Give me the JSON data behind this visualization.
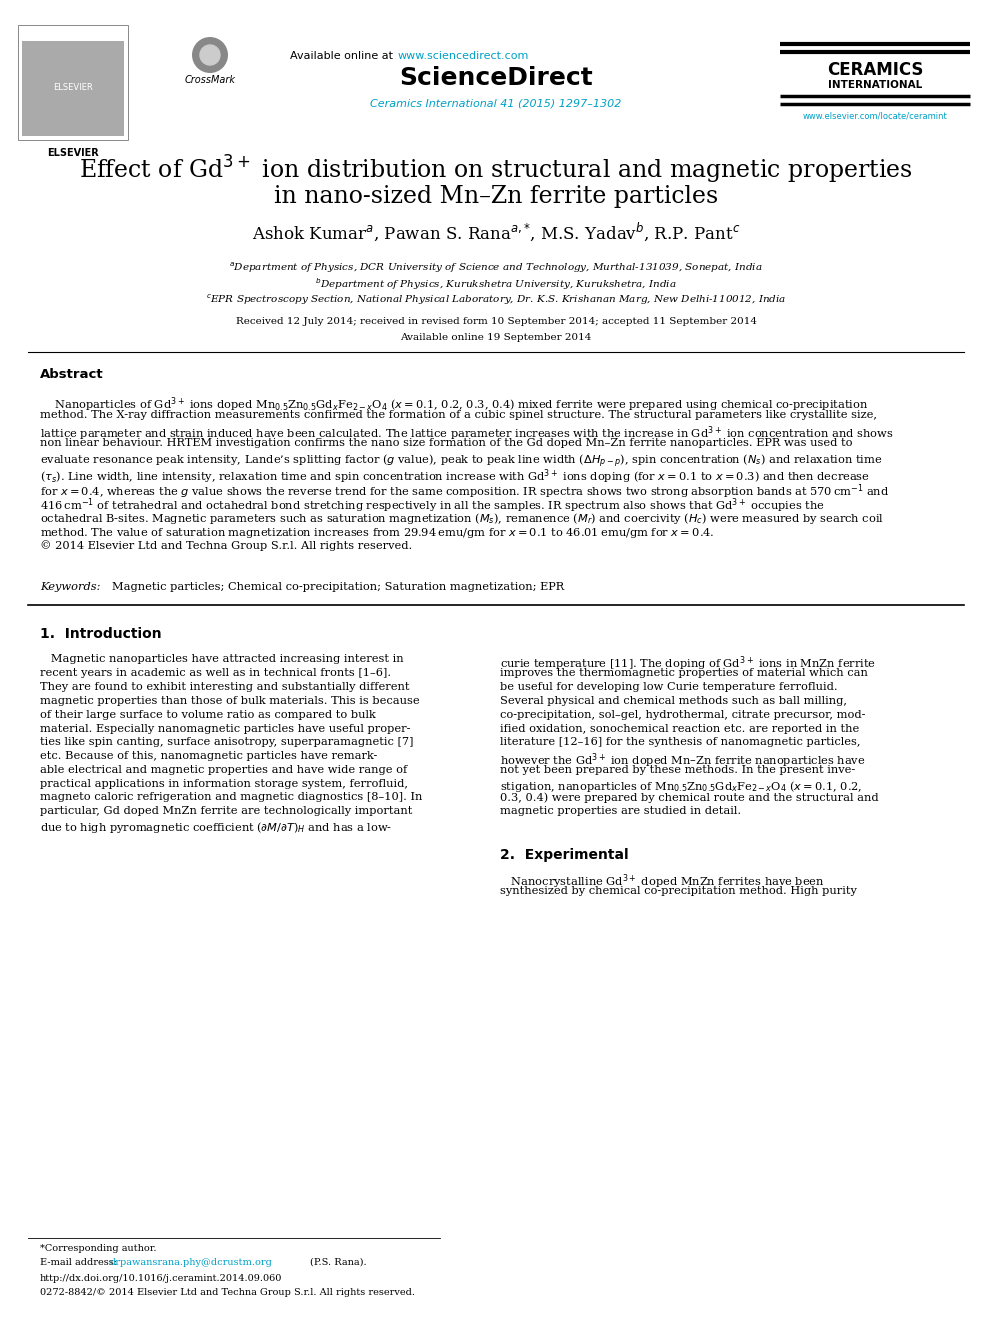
{
  "bg_color": "#ffffff",
  "dpi": 100,
  "fig_w": 9.92,
  "fig_h": 13.23,
  "url_color": "#00a0c6",
  "text_color": "#000000",
  "header": {
    "avail_text": "Available online at ",
    "avail_url": "www.sciencedirect.com",
    "sciencedirect": "ScienceDirect",
    "citation": "Ceramics International 41 (2015) 1297–1302",
    "elsevier": "ELSEVIER",
    "crossmark": "CrossMark",
    "ceramics": "CERAMICS",
    "international": "INTERNATIONAL",
    "journal_url": "www.elsevier.com/locate/ceramint"
  },
  "title1": "Effect of Gd$^{3+}$ ion distribution on structural and magnetic properties",
  "title2": "in nano-sized Mn–Zn ferrite particles",
  "authors": "Ashok Kumar$^a$, Pawan S. Rana$^{a,{*}}$, M.S. Yadav$^b$, R.P. Pant$^c$",
  "affil_a": "$^a$Department of Physics, DCR University of Science and Technology, Murthal-131039, Sonepat, India",
  "affil_b": "$^b$Department of Physics, Kurukshetra University, Kurukshetra, India",
  "affil_c": "$^c$EPR Spectroscopy Section, National Physical Laboratory, Dr. K.S. Krishanan Marg, New Delhi-110012, India",
  "received": "Received 12 July 2014; received in revised form 10 September 2014; accepted 11 September 2014",
  "available_online": "Available online 19 September 2014",
  "abstract_label": "Abstract",
  "abstract_lines": [
    "    Nanoparticles of Gd$^{3+}$ ions doped Mn$_{0.5}$Zn$_{0.5}$Gd$_x$Fe$_{2-x}$O$_4$ ($x$ = 0.1, 0.2, 0.3, 0.4) mixed ferrite were prepared using chemical co-precipitation",
    "method. The X-ray diffraction measurements confirmed the formation of a cubic spinel structure. The structural parameters like crystallite size,",
    "lattice parameter and strain induced have been calculated. The lattice parameter increases with the increase in Gd$^{3+}$ ion concentration and shows",
    "non linear behaviour. HRTEM investigation confirms the nano size formation of the Gd doped Mn–Zn ferrite nanoparticles. EPR was used to",
    "evaluate resonance peak intensity, Lande’s splitting factor ($g$ value), peak to peak line width ($\\Delta H_{p-p}$), spin concentration ($N_s$) and relaxation time",
    "($\\tau_s$). Line width, line intensity, relaxation time and spin concentration increase with Gd$^{3+}$ ions doping (for $x$ = 0.1 to $x$ = 0.3) and then decrease",
    "for $x$ = 0.4, whereas the $g$ value shows the reverse trend for the same composition. IR spectra shows two strong absorption bands at 570 cm$^{-1}$ and",
    "416 cm$^{-1}$ of tetrahedral and octahedral bond stretching respectively in all the samples. IR spectrum also shows that Gd$^{3+}$ occupies the",
    "octahedral B-sites. Magnetic parameters such as saturation magnetization ($M_s$), remanence ($M_r$) and coercivity ($H_c$) were measured by search coil",
    "method. The value of saturation magnetization increases from 29.94 emu/gm for $x$ = 0.1 to 46.01 emu/gm for $x$ = 0.4.",
    "© 2014 Elsevier Ltd and Techna Group S.r.l. All rights reserved."
  ],
  "keywords_label": "Keywords:",
  "keywords_text": "Magnetic particles; Chemical co-precipitation; Saturation magnetization; EPR",
  "sec1_title": "1.  Introduction",
  "intro_left_lines": [
    "   Magnetic nanoparticles have attracted increasing interest in",
    "recent years in academic as well as in technical fronts [1–6].",
    "They are found to exhibit interesting and substantially different",
    "magnetic properties than those of bulk materials. This is because",
    "of their large surface to volume ratio as compared to bulk",
    "material. Especially nanomagnetic particles have useful proper-",
    "ties like spin canting, surface anisotropy, superparamagnetic [7]",
    "etc. Because of this, nanomagnetic particles have remark-",
    "able electrical and magnetic properties and have wide range of",
    "practical applications in information storage system, ferrofluid,",
    "magneto caloric refrigeration and magnetic diagnostics [8–10]. In",
    "particular, Gd doped MnZn ferrite are technologically important",
    "due to high pyromagnetic coefficient ($\\partial M/\\partial T)_H$ and has a low-"
  ],
  "intro_right_lines": [
    "curie temperature [11]. The doping of Gd$^{3+}$ ions in MnZn ferrite",
    "improves the thermomagnetic properties of material which can",
    "be useful for developing low Curie temperature ferrofluid.",
    "Several physical and chemical methods such as ball milling,",
    "co-precipitation, sol–gel, hydrothermal, citrate precursor, mod-",
    "ified oxidation, sonochemical reaction etc. are reported in the",
    "literature [12–16] for the synthesis of nanomagnetic particles,",
    "however the Gd$^{3+}$ ion doped Mn–Zn ferrite nanoparticles have",
    "not yet been prepared by these methods. In the present inve-",
    "stigation, nanoparticles of Mn$_{0.5}$Zn$_{0.5}$Gd$_x$Fe$_{2-x}$O$_4$ ($x$ = 0.1, 0.2,",
    "0.3, 0.4) were prepared by chemical route and the structural and",
    "magnetic properties are studied in detail."
  ],
  "sec2_title": "2.  Experimental",
  "exp_right_lines": [
    "   Nanocrystalline Gd$^{3+}$ doped MnZn ferrites have been",
    "synthesized by chemical co-precipitation method. High purity"
  ],
  "footer_star": "*Corresponding author.",
  "footer_email_label": "E-mail address:",
  "footer_email": "drpawansrana.phy@dcrustm.org",
  "footer_email_suffix": "(P.S. Rana).",
  "footer_doi": "http://dx.doi.org/10.1016/j.ceramint.2014.09.060",
  "footer_issn": "0272-8842/© 2014 Elsevier Ltd and Techna Group S.r.l. All rights reserved."
}
